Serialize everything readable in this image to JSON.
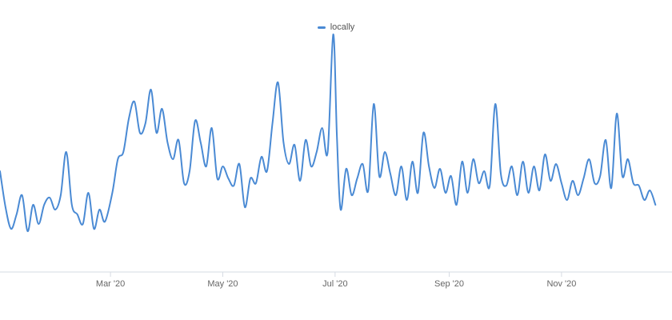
{
  "chart_data": {
    "type": "line",
    "title": "",
    "xlabel": "",
    "ylabel": "",
    "legend_position": "top-center",
    "grid": false,
    "x_range": [
      "2020-01-01",
      "2020-12-31"
    ],
    "x_ticks": [
      {
        "date": "2020-03-01",
        "label": "Mar '20"
      },
      {
        "date": "2020-05-01",
        "label": "May '20"
      },
      {
        "date": "2020-07-01",
        "label": "Jul '20"
      },
      {
        "date": "2020-09-01",
        "label": "Sep '20"
      },
      {
        "date": "2020-11-01",
        "label": "Nov '20"
      }
    ],
    "y_range": [
      0,
      100
    ],
    "series": [
      {
        "name": "locally",
        "color": "#4a8ad4",
        "points": [
          [
            "2020-01-01",
            42
          ],
          [
            "2020-01-04",
            27
          ],
          [
            "2020-01-07",
            18
          ],
          [
            "2020-01-10",
            24
          ],
          [
            "2020-01-13",
            32
          ],
          [
            "2020-01-16",
            17
          ],
          [
            "2020-01-19",
            28
          ],
          [
            "2020-01-22",
            20
          ],
          [
            "2020-01-25",
            28
          ],
          [
            "2020-01-28",
            31
          ],
          [
            "2020-01-31",
            26
          ],
          [
            "2020-02-03",
            32
          ],
          [
            "2020-02-06",
            50
          ],
          [
            "2020-02-09",
            28
          ],
          [
            "2020-02-12",
            24
          ],
          [
            "2020-02-15",
            20
          ],
          [
            "2020-02-18",
            33
          ],
          [
            "2020-02-21",
            18
          ],
          [
            "2020-02-24",
            26
          ],
          [
            "2020-02-27",
            21
          ],
          [
            "2020-03-02",
            33
          ],
          [
            "2020-03-05",
            47
          ],
          [
            "2020-03-08",
            50
          ],
          [
            "2020-03-11",
            64
          ],
          [
            "2020-03-14",
            71
          ],
          [
            "2020-03-17",
            58
          ],
          [
            "2020-03-20",
            62
          ],
          [
            "2020-03-23",
            76
          ],
          [
            "2020-03-26",
            58
          ],
          [
            "2020-03-29",
            68
          ],
          [
            "2020-04-01",
            54
          ],
          [
            "2020-04-04",
            47
          ],
          [
            "2020-04-07",
            55
          ],
          [
            "2020-04-10",
            37
          ],
          [
            "2020-04-13",
            42
          ],
          [
            "2020-04-16",
            63
          ],
          [
            "2020-04-19",
            54
          ],
          [
            "2020-04-22",
            44
          ],
          [
            "2020-04-25",
            60
          ],
          [
            "2020-04-28",
            39
          ],
          [
            "2020-05-01",
            44
          ],
          [
            "2020-05-04",
            39
          ],
          [
            "2020-05-07",
            36
          ],
          [
            "2020-05-10",
            45
          ],
          [
            "2020-05-13",
            27
          ],
          [
            "2020-05-16",
            39
          ],
          [
            "2020-05-19",
            37
          ],
          [
            "2020-05-22",
            48
          ],
          [
            "2020-05-25",
            42
          ],
          [
            "2020-05-28",
            62
          ],
          [
            "2020-05-31",
            79
          ],
          [
            "2020-06-03",
            54
          ],
          [
            "2020-06-06",
            45
          ],
          [
            "2020-06-09",
            53
          ],
          [
            "2020-06-12",
            38
          ],
          [
            "2020-06-15",
            55
          ],
          [
            "2020-06-18",
            44
          ],
          [
            "2020-06-21",
            50
          ],
          [
            "2020-06-24",
            60
          ],
          [
            "2020-06-27",
            50
          ],
          [
            "2020-06-30",
            99
          ],
          [
            "2020-07-02",
            56
          ],
          [
            "2020-07-04",
            26
          ],
          [
            "2020-07-07",
            43
          ],
          [
            "2020-07-10",
            32
          ],
          [
            "2020-07-13",
            39
          ],
          [
            "2020-07-16",
            45
          ],
          [
            "2020-07-19",
            34
          ],
          [
            "2020-07-22",
            70
          ],
          [
            "2020-07-25",
            40
          ],
          [
            "2020-07-28",
            50
          ],
          [
            "2020-07-31",
            41
          ],
          [
            "2020-08-03",
            32
          ],
          [
            "2020-08-06",
            44
          ],
          [
            "2020-08-09",
            30
          ],
          [
            "2020-08-12",
            46
          ],
          [
            "2020-08-15",
            33
          ],
          [
            "2020-08-18",
            58
          ],
          [
            "2020-08-21",
            44
          ],
          [
            "2020-08-24",
            35
          ],
          [
            "2020-08-27",
            43
          ],
          [
            "2020-08-30",
            33
          ],
          [
            "2020-09-02",
            40
          ],
          [
            "2020-09-05",
            28
          ],
          [
            "2020-09-08",
            46
          ],
          [
            "2020-09-11",
            33
          ],
          [
            "2020-09-14",
            47
          ],
          [
            "2020-09-17",
            37
          ],
          [
            "2020-09-20",
            42
          ],
          [
            "2020-09-23",
            36
          ],
          [
            "2020-09-26",
            70
          ],
          [
            "2020-09-29",
            41
          ],
          [
            "2020-10-02",
            36
          ],
          [
            "2020-10-05",
            44
          ],
          [
            "2020-10-08",
            32
          ],
          [
            "2020-10-11",
            46
          ],
          [
            "2020-10-14",
            33
          ],
          [
            "2020-10-17",
            44
          ],
          [
            "2020-10-20",
            34
          ],
          [
            "2020-10-23",
            49
          ],
          [
            "2020-10-26",
            38
          ],
          [
            "2020-10-29",
            45
          ],
          [
            "2020-11-01",
            37
          ],
          [
            "2020-11-04",
            30
          ],
          [
            "2020-11-07",
            38
          ],
          [
            "2020-11-10",
            32
          ],
          [
            "2020-11-13",
            39
          ],
          [
            "2020-11-16",
            47
          ],
          [
            "2020-11-19",
            37
          ],
          [
            "2020-11-22",
            40
          ],
          [
            "2020-11-25",
            55
          ],
          [
            "2020-11-28",
            35
          ],
          [
            "2020-12-01",
            66
          ],
          [
            "2020-12-04",
            40
          ],
          [
            "2020-12-07",
            47
          ],
          [
            "2020-12-10",
            37
          ],
          [
            "2020-12-13",
            36
          ],
          [
            "2020-12-16",
            30
          ],
          [
            "2020-12-19",
            34
          ],
          [
            "2020-12-22",
            28
          ]
        ]
      }
    ]
  }
}
